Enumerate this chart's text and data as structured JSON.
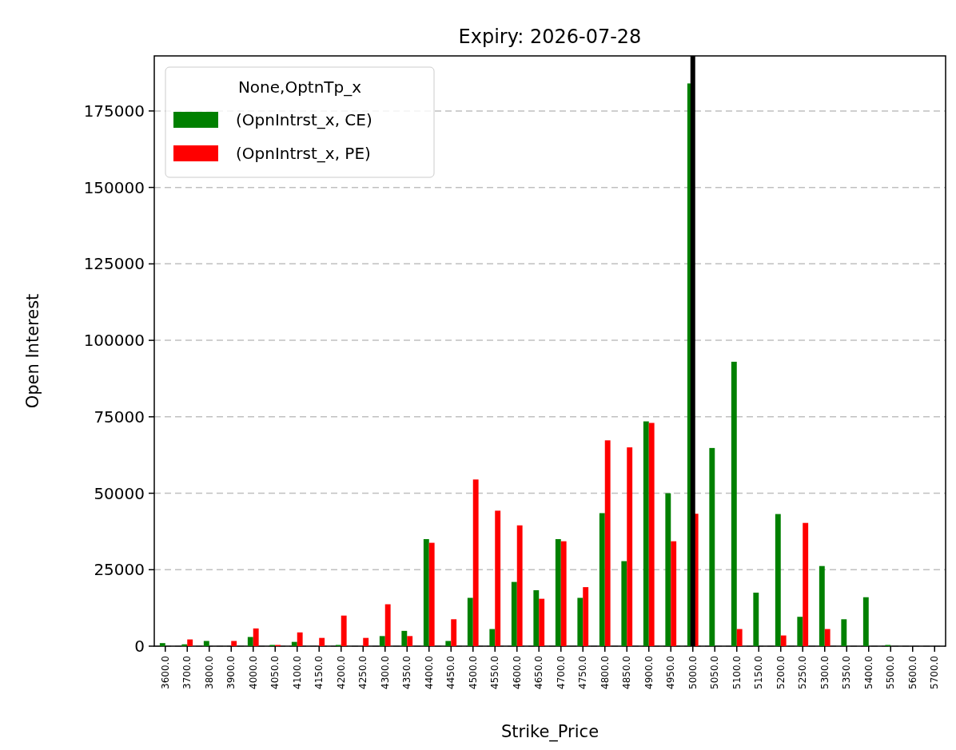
{
  "chart_data": {
    "type": "bar",
    "title": "Expiry: 2026-07-28",
    "xlabel": "Strike_Price",
    "ylabel": "Open Interest",
    "legend_title": "None,OptnTp_x",
    "categories": [
      "3600.0",
      "3700.0",
      "3800.0",
      "3900.0",
      "4000.0",
      "4050.0",
      "4100.0",
      "4150.0",
      "4200.0",
      "4250.0",
      "4300.0",
      "4350.0",
      "4400.0",
      "4450.0",
      "4500.0",
      "4550.0",
      "4600.0",
      "4650.0",
      "4700.0",
      "4750.0",
      "4800.0",
      "4850.0",
      "4900.0",
      "4950.0",
      "5000.0",
      "5050.0",
      "5100.0",
      "5150.0",
      "5200.0",
      "5250.0",
      "5300.0",
      "5350.0",
      "5400.0",
      "5500.0",
      "5600.0",
      "5700.0"
    ],
    "series": [
      {
        "name": "(OpnIntrst_x, CE)",
        "color": "#008000",
        "values": [
          1000,
          600,
          1700,
          0,
          3000,
          400,
          1400,
          0,
          400,
          0,
          3300,
          5000,
          35000,
          1700,
          15800,
          5600,
          21000,
          18300,
          35000,
          15800,
          43500,
          27800,
          73500,
          50000,
          184000,
          64800,
          93000,
          17500,
          43200,
          9600,
          26200,
          8800,
          16000,
          400,
          0,
          0
        ]
      },
      {
        "name": "(OpnIntrst_x, PE)",
        "color": "#ff0000",
        "values": [
          0,
          2200,
          0,
          1700,
          5800,
          400,
          4500,
          2700,
          10000,
          2700,
          13700,
          3300,
          33800,
          8800,
          54500,
          44300,
          39500,
          15500,
          34300,
          19300,
          67300,
          65000,
          73000,
          34300,
          43300,
          0,
          5600,
          0,
          3500,
          40300,
          5600,
          0,
          0,
          0,
          0,
          0
        ]
      }
    ],
    "ylim": [
      0,
      193000
    ],
    "yticks": [
      0,
      25000,
      50000,
      75000,
      100000,
      125000,
      150000,
      175000
    ],
    "grid": "y",
    "legend": "top left",
    "ref_lines": [
      {
        "axis": "x",
        "value": "5000.0",
        "color": "#000000"
      }
    ]
  }
}
